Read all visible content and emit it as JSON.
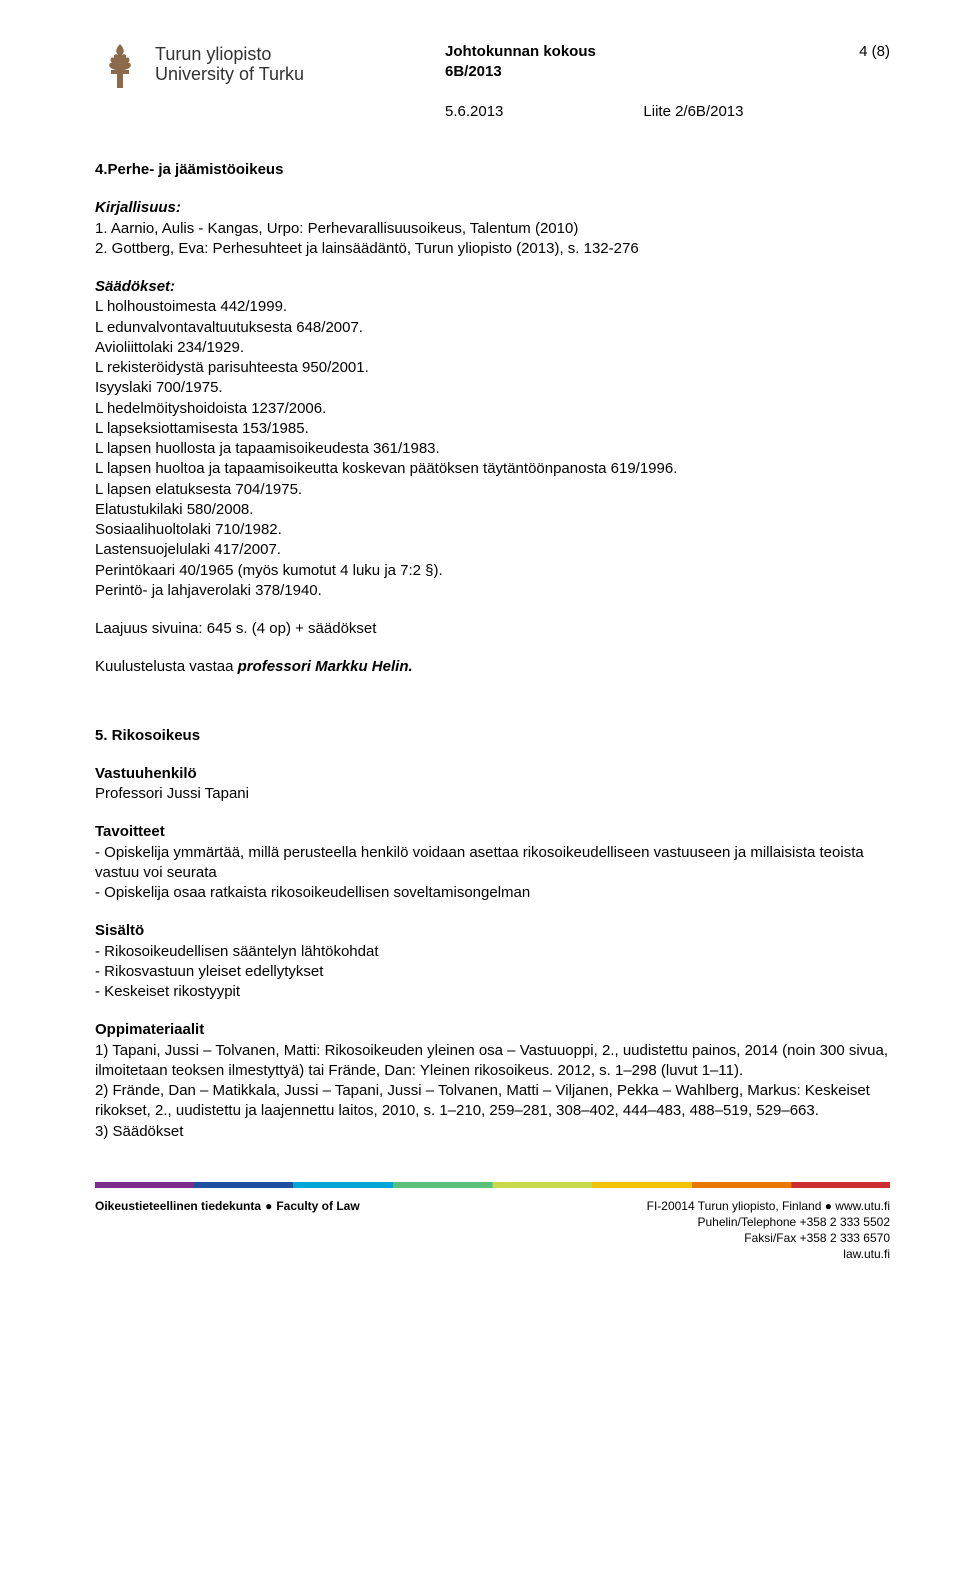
{
  "header": {
    "logo_fi": "Turun yliopisto",
    "logo_en": "University of Turku",
    "title_line1": "Johtokunnan kokous",
    "title_line2": "6B/2013",
    "page_no": "4 (8)",
    "date": "5.6.2013",
    "attachment": "Liite 2/6B/2013"
  },
  "s4": {
    "heading": "4.Perhe- ja jäämistöoikeus",
    "kirj_label": "Kirjallisuus:",
    "kirj_1": "1. Aarnio, Aulis - Kangas, Urpo: Perhevarallisuusoikeus, Talentum (2010)",
    "kirj_2": "2. Gottberg, Eva: Perhesuhteet ja lainsäädäntö, Turun yliopisto (2013), s. 132-276",
    "saad_label": "Säädökset:",
    "laws": [
      "L holhoustoimesta 442/1999.",
      "L edunvalvontavaltuutuksesta 648/2007.",
      "Avioliittolaki 234/1929.",
      "L rekisteröidystä parisuhteesta 950/2001.",
      "Isyyslaki 700/1975.",
      "L hedelmöityshoidoista 1237/2006.",
      "L lapseksiottamisesta 153/1985.",
      "L lapsen huollosta ja tapaamisoikeudesta 361/1983.",
      "L lapsen huoltoa ja tapaamisoikeutta koskevan päätöksen täytäntöönpanosta 619/1996.",
      "L lapsen elatuksesta 704/1975.",
      "Elatustukilaki 580/2008.",
      "Sosiaalihuoltolaki 710/1982.",
      "Lastensuojelulaki 417/2007.",
      "Perintökaari 40/1965 (myös kumotut 4 luku ja 7:2 §).",
      "Perintö- ja lahjaverolaki 378/1940."
    ],
    "extent": "Laajuus sivuina: 645 s. (4 op) + säädökset",
    "examiner_pre": "Kuulustelusta vastaa ",
    "examiner_name": "professori Markku Helin."
  },
  "s5": {
    "heading": "5. Rikosoikeus",
    "resp_label": "Vastuuhenkilö",
    "resp_val": "Professori Jussi Tapani",
    "goals_label": "Tavoitteet",
    "goal_1": "- Opiskelija ymmärtää, millä perusteella henkilö voidaan asettaa rikosoikeudelliseen vastuuseen ja millaisista teoista vastuu voi seurata",
    "goal_2": "- Opiskelija osaa ratkaista rikosoikeudellisen soveltamisongelman",
    "content_label": "Sisältö",
    "c1": "- Rikosoikeudellisen sääntelyn lähtökohdat",
    "c2": "- Rikosvastuun yleiset edellytykset",
    "c3": "- Keskeiset rikostyypit",
    "mat_label": "Oppimateriaalit",
    "m1": "1) Tapani, Jussi – Tolvanen, Matti: Rikosoikeuden yleinen osa – Vastuuoppi, 2., uudistettu painos, 2014 (noin 300 sivua, ilmoitetaan teoksen ilmestyttyä) tai Frände, Dan: Yleinen rikosoikeus. 2012, s. 1–298 (luvut 1–11).",
    "m2": "2) Frände, Dan – Matikkala, Jussi – Tapani, Jussi – Tolvanen, Matti – Viljanen, Pekka – Wahlberg, Markus: Keskeiset rikokset, 2., uudistettu ja laajennettu laitos, 2010, s. 1–210, 259–281, 308–402, 444–483, 488–519, 529–663.",
    "m3": "3) Säädökset"
  },
  "footer": {
    "left_fi": "Oikeustieteellinen tiedekunta",
    "left_en": "Faculty of Law",
    "r1": "FI-20014 Turun yliopisto, Finland ● www.utu.fi",
    "r2": "Puhelin/Telephone +358 2 333 5502",
    "r3": "Faksi/Fax +358 2 333 6570",
    "r4": "law.utu.fi"
  }
}
